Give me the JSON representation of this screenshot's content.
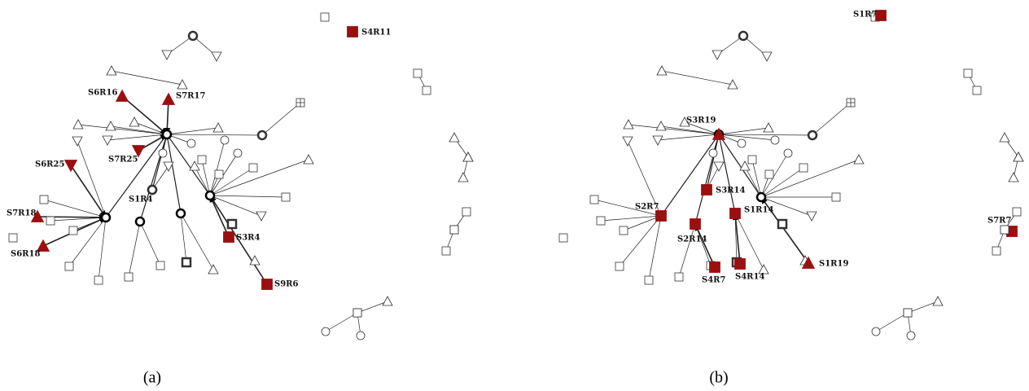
{
  "panels": [
    {
      "caption": "(a)",
      "nodes": [
        {
          "label": "S4R11"
        },
        {
          "label": "S6R16"
        },
        {
          "label": "S7R17"
        },
        {
          "label": "S6R25"
        },
        {
          "label": "S7R25"
        },
        {
          "label": "S1R4"
        },
        {
          "label": "S7R18"
        },
        {
          "label": "S6R18"
        },
        {
          "label": "S3R4"
        },
        {
          "label": "S9R6"
        }
      ]
    },
    {
      "caption": "(b)",
      "nodes": [
        {
          "label": "S1R7"
        },
        {
          "label": "S3R19"
        },
        {
          "label": "S3R14"
        },
        {
          "label": "S2R7"
        },
        {
          "label": "S2R14"
        },
        {
          "label": "S1R14"
        },
        {
          "label": "S4R7"
        },
        {
          "label": "S4R14"
        },
        {
          "label": "S1R19"
        },
        {
          "label": "S7R7"
        }
      ]
    }
  ]
}
